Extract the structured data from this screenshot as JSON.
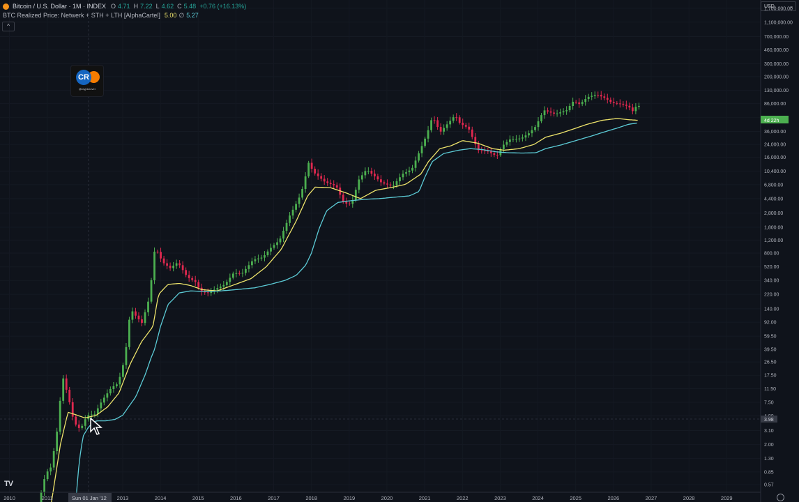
{
  "legend": {
    "title": "Bitcoin / U.S. Dollar · 1M · INDEX",
    "open_label": "O",
    "open": "4.71",
    "high_label": "H",
    "high": "7.22",
    "low_label": "L",
    "low": "4.62",
    "close_label": "C",
    "close": "5.48",
    "change": "+0.76 (+16.13%)",
    "indicator_name": "BTC Realized Price: Netwerk + STH + LTH [AlphaCartel]",
    "indicator_value_1": "5.00",
    "indicator_separator": "∅",
    "indicator_value_2": "5.27"
  },
  "collapse_glyph": "^",
  "currency_selector": {
    "label": "USD",
    "caret": "⌄"
  },
  "watermark": {
    "logo_text": "CR",
    "handle": "@cryptorover"
  },
  "price_badge": {
    "value": "4d 22h"
  },
  "cursor_price_badge": {
    "value": "3.98"
  },
  "crosshair_date": "Sun 01 Jan '12",
  "tv_logo_text": "TV",
  "colors": {
    "background": "#0f131b",
    "up_candle": "#4caf50",
    "down_candle": "#e0284f",
    "realized_price": "#ede36b",
    "lth_realized_price": "#5ccbd6",
    "axis_text": "#b2b5be"
  },
  "chart_data": {
    "type": "candlestick",
    "title": "Bitcoin / U.S. Dollar · 1M · INDEX",
    "y_scale": "log",
    "y_ticks": [
      1700000,
      1100000,
      700000,
      460000,
      300000,
      200000,
      130000,
      86000,
      56000,
      36000,
      24000,
      16000,
      10400,
      6800,
      4400,
      2800,
      1800,
      1200,
      800,
      520,
      340,
      220,
      140,
      92,
      59.5,
      39.5,
      26.5,
      17.5,
      11.5,
      7.5,
      4.9,
      3.1,
      2.0,
      1.3,
      0.85,
      0.57
    ],
    "y_tick_labels": [
      "1,700,000.00",
      "1,100,000.00",
      "700,000.00",
      "460,000.00",
      "300,000.00",
      "200,000.00",
      "130,000.00",
      "86,000.00",
      "56,000.00",
      "36,000.00",
      "24,000.00",
      "16,000.00",
      "10,400.00",
      "6,800.00",
      "4,400.00",
      "2,800.00",
      "1,800.00",
      "1,200.00",
      "800.00",
      "520.00",
      "340.00",
      "220.00",
      "140.00",
      "92.00",
      "59.50",
      "39.50",
      "26.50",
      "17.50",
      "11.50",
      "7.50",
      "4.90",
      "3.10",
      "2.00",
      "1.30",
      "0.85",
      "0.57"
    ],
    "x_tick_labels": [
      "2010",
      "2011",
      "2013",
      "2014",
      "2015",
      "2016",
      "2017",
      "2018",
      "2019",
      "2020",
      "2021",
      "2022",
      "2023",
      "2024",
      "2025",
      "2026",
      "2027",
      "2028",
      "2029"
    ],
    "x_tick_years": [
      2010,
      2011,
      2013,
      2014,
      2015,
      2016,
      2017,
      2018,
      2019,
      2020,
      2021,
      2022,
      2023,
      2024,
      2025,
      2026,
      2027,
      2028,
      2029
    ],
    "x_range": [
      2009.75,
      2029.9
    ],
    "y_range": [
      0.45,
      2200000
    ],
    "price_anchors": [
      [
        2010.8,
        0.3
      ],
      [
        2011.0,
        0.8
      ],
      [
        2011.15,
        1.0
      ],
      [
        2011.3,
        3.0
      ],
      [
        2011.45,
        17
      ],
      [
        2011.6,
        9
      ],
      [
        2011.75,
        4
      ],
      [
        2011.92,
        3.2
      ],
      [
        2012.1,
        5
      ],
      [
        2012.3,
        5.2
      ],
      [
        2012.5,
        8
      ],
      [
        2012.75,
        12
      ],
      [
        2012.92,
        13.5
      ],
      [
        2013.1,
        30
      ],
      [
        2013.25,
        140
      ],
      [
        2013.4,
        110
      ],
      [
        2013.55,
        90
      ],
      [
        2013.75,
        200
      ],
      [
        2013.9,
        1000
      ],
      [
        2013.98,
        800
      ],
      [
        2014.1,
        600
      ],
      [
        2014.3,
        500
      ],
      [
        2014.5,
        600
      ],
      [
        2014.75,
        380
      ],
      [
        2014.98,
        320
      ],
      [
        2015.1,
        240
      ],
      [
        2015.3,
        230
      ],
      [
        2015.5,
        260
      ],
      [
        2015.75,
        300
      ],
      [
        2015.98,
        430
      ],
      [
        2016.2,
        420
      ],
      [
        2016.5,
        650
      ],
      [
        2016.75,
        700
      ],
      [
        2016.98,
        960
      ],
      [
        2017.2,
        1200
      ],
      [
        2017.45,
        2500
      ],
      [
        2017.7,
        4300
      ],
      [
        2017.85,
        7000
      ],
      [
        2017.95,
        14000
      ],
      [
        2018.1,
        10000
      ],
      [
        2018.4,
        7400
      ],
      [
        2018.7,
        6500
      ],
      [
        2018.9,
        3800
      ],
      [
        2019.1,
        3700
      ],
      [
        2019.3,
        8000
      ],
      [
        2019.5,
        11000
      ],
      [
        2019.7,
        9000
      ],
      [
        2019.9,
        7200
      ],
      [
        2020.2,
        6500
      ],
      [
        2020.45,
        9500
      ],
      [
        2020.7,
        11000
      ],
      [
        2020.9,
        19000
      ],
      [
        2021.1,
        33000
      ],
      [
        2021.25,
        58000
      ],
      [
        2021.45,
        35000
      ],
      [
        2021.6,
        43000
      ],
      [
        2021.85,
        60000
      ],
      [
        2021.98,
        46000
      ],
      [
        2022.2,
        40000
      ],
      [
        2022.45,
        20000
      ],
      [
        2022.7,
        19500
      ],
      [
        2022.95,
        16500
      ],
      [
        2023.1,
        23000
      ],
      [
        2023.3,
        28000
      ],
      [
        2023.6,
        29000
      ],
      [
        2023.8,
        34000
      ],
      [
        2023.98,
        42000
      ],
      [
        2024.2,
        70000
      ],
      [
        2024.5,
        62000
      ],
      [
        2024.8,
        70000
      ],
      [
        2024.98,
        93000
      ],
      [
        2025.15,
        84000
      ],
      [
        2025.35,
        105000
      ],
      [
        2025.6,
        115000
      ],
      [
        2025.85,
        100000
      ],
      [
        2026.0,
        88000
      ],
      [
        2026.25,
        85000
      ],
      [
        2026.45,
        78000
      ],
      [
        2026.55,
        68000
      ],
      [
        2026.65,
        80000
      ]
    ],
    "realized_price_anchors": [
      [
        2011.1,
        0.3
      ],
      [
        2011.35,
        2
      ],
      [
        2011.55,
        5.5
      ],
      [
        2011.8,
        5
      ],
      [
        2012.0,
        4.6
      ],
      [
        2012.3,
        5
      ],
      [
        2012.6,
        6.5
      ],
      [
        2012.9,
        10
      ],
      [
        2013.2,
        25
      ],
      [
        2013.5,
        50
      ],
      [
        2013.8,
        80
      ],
      [
        2013.95,
        220
      ],
      [
        2014.2,
        300
      ],
      [
        2014.5,
        310
      ],
      [
        2014.8,
        290
      ],
      [
        2015.1,
        255
      ],
      [
        2015.5,
        245
      ],
      [
        2015.9,
        290
      ],
      [
        2016.4,
        360
      ],
      [
        2016.8,
        520
      ],
      [
        2017.2,
        900
      ],
      [
        2017.6,
        2200
      ],
      [
        2017.9,
        4800
      ],
      [
        2018.1,
        6300
      ],
      [
        2018.5,
        6200
      ],
      [
        2018.9,
        5300
      ],
      [
        2019.3,
        4400
      ],
      [
        2019.7,
        5700
      ],
      [
        2020.1,
        6200
      ],
      [
        2020.5,
        6900
      ],
      [
        2020.9,
        9500
      ],
      [
        2021.1,
        14000
      ],
      [
        2021.4,
        21000
      ],
      [
        2021.7,
        23000
      ],
      [
        2022.0,
        27000
      ],
      [
        2022.4,
        25000
      ],
      [
        2022.8,
        21000
      ],
      [
        2023.1,
        20000
      ],
      [
        2023.5,
        21000
      ],
      [
        2023.9,
        24000
      ],
      [
        2024.2,
        30000
      ],
      [
        2024.6,
        34000
      ],
      [
        2024.95,
        39000
      ],
      [
        2025.3,
        45000
      ],
      [
        2025.7,
        51000
      ],
      [
        2026.1,
        54000
      ],
      [
        2026.4,
        52000
      ],
      [
        2026.65,
        51000
      ]
    ],
    "lth_realized_price_anchors": [
      [
        2011.75,
        0.3
      ],
      [
        2011.85,
        1.2
      ],
      [
        2011.95,
        2.6
      ],
      [
        2012.1,
        3.5
      ],
      [
        2012.3,
        4.2
      ],
      [
        2012.55,
        4.2
      ],
      [
        2012.8,
        4.4
      ],
      [
        2013.0,
        5
      ],
      [
        2013.35,
        9
      ],
      [
        2013.6,
        18
      ],
      [
        2013.75,
        30
      ],
      [
        2013.85,
        40
      ],
      [
        2014.0,
        80
      ],
      [
        2014.2,
        160
      ],
      [
        2014.5,
        230
      ],
      [
        2014.8,
        245
      ],
      [
        2015.2,
        240
      ],
      [
        2015.6,
        245
      ],
      [
        2016.0,
        255
      ],
      [
        2016.5,
        270
      ],
      [
        2016.9,
        300
      ],
      [
        2017.3,
        340
      ],
      [
        2017.6,
        400
      ],
      [
        2017.85,
        550
      ],
      [
        2018.0,
        800
      ],
      [
        2018.2,
        1700
      ],
      [
        2018.4,
        3000
      ],
      [
        2018.7,
        3900
      ],
      [
        2019.0,
        4100
      ],
      [
        2019.4,
        4300
      ],
      [
        2019.8,
        4400
      ],
      [
        2020.2,
        4600
      ],
      [
        2020.6,
        4800
      ],
      [
        2020.85,
        5500
      ],
      [
        2021.0,
        8500
      ],
      [
        2021.2,
        14000
      ],
      [
        2021.5,
        18000
      ],
      [
        2021.9,
        20000
      ],
      [
        2022.2,
        21000
      ],
      [
        2022.5,
        20500
      ],
      [
        2022.9,
        19000
      ],
      [
        2023.2,
        18500
      ],
      [
        2023.6,
        18300
      ],
      [
        2023.95,
        18500
      ],
      [
        2024.2,
        21000
      ],
      [
        2024.6,
        23500
      ],
      [
        2025.0,
        27000
      ],
      [
        2025.4,
        31000
      ],
      [
        2025.8,
        36000
      ],
      [
        2026.1,
        40000
      ],
      [
        2026.4,
        45000
      ],
      [
        2026.65,
        47000
      ]
    ]
  }
}
